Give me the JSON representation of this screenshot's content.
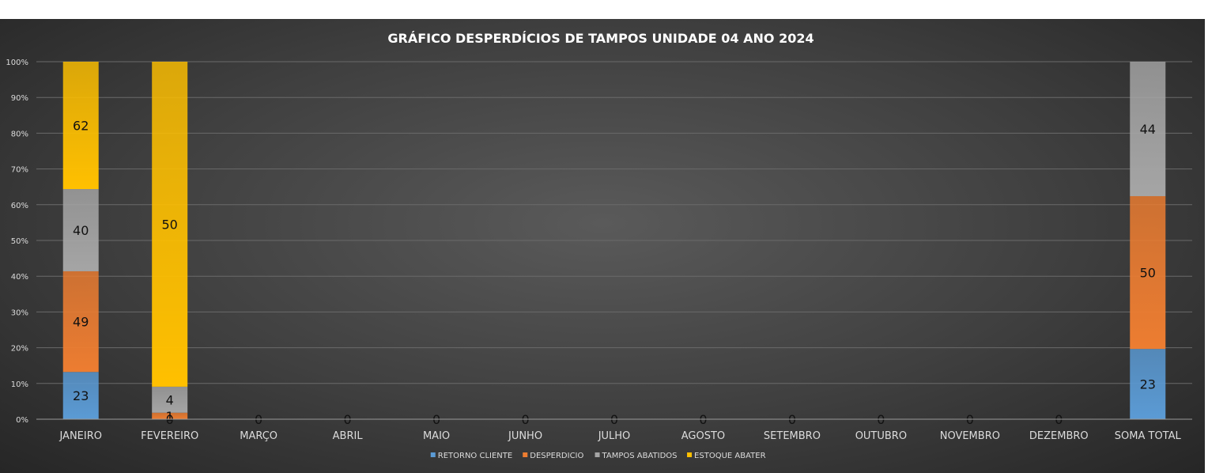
{
  "chart_data": {
    "type": "bar",
    "stacking": "percent",
    "title": "GRÁFICO DESPERDÍCIOS  DE TAMPOS  UNIDADE 04 ANO 2024",
    "categories": [
      "JANEIRO",
      "FEVEREIRO",
      "MARÇO",
      "ABRIL",
      "MAIO",
      "JUNHO",
      "JULHO",
      "AGOSTO",
      "SETEMBRO",
      "OUTUBRO",
      "NOVEMBRO",
      "DEZEMBRO",
      "SOMA TOTAL"
    ],
    "series": [
      {
        "name": "RETORNO CLIENTE",
        "color": "#5b9bd5",
        "values": [
          23,
          0,
          0,
          0,
          0,
          0,
          0,
          0,
          0,
          0,
          0,
          0,
          23
        ]
      },
      {
        "name": "DESPERDICIO",
        "color": "#ed7d31",
        "values": [
          49,
          1,
          0,
          0,
          0,
          0,
          0,
          0,
          0,
          0,
          0,
          0,
          50
        ]
      },
      {
        "name": "TAMPOS ABATIDOS",
        "color": "#a5a5a5",
        "values": [
          40,
          4,
          0,
          0,
          0,
          0,
          0,
          0,
          0,
          0,
          0,
          0,
          44
        ]
      },
      {
        "name": "ESTOQUE ABATER",
        "color": "#ffc000",
        "values": [
          62,
          50,
          0,
          0,
          0,
          0,
          0,
          0,
          0,
          0,
          0,
          0,
          0
        ]
      }
    ],
    "y_ticks": [
      "0%",
      "10%",
      "20%",
      "30%",
      "40%",
      "50%",
      "60%",
      "70%",
      "80%",
      "90%",
      "100%"
    ],
    "ylim": [
      0,
      100
    ],
    "grid": true,
    "legend_position": "bottom"
  }
}
